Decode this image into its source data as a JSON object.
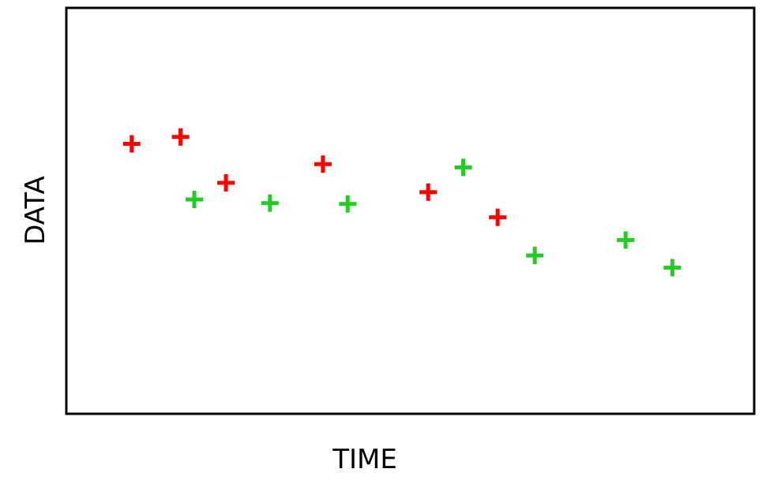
{
  "chart_data": {
    "type": "scatter",
    "title": "",
    "xlabel": "TIME",
    "ylabel": "DATA",
    "xlim": [
      0,
      100
    ],
    "ylim": [
      0,
      100
    ],
    "grid": false,
    "legend": "none",
    "series": [
      {
        "color": "#ff0000",
        "marker": "plus",
        "points": [
          {
            "x": 9.5,
            "y": 66.5
          },
          {
            "x": 16.6,
            "y": 68.2
          },
          {
            "x": 23.2,
            "y": 56.9
          },
          {
            "x": 37.3,
            "y": 61.5
          },
          {
            "x": 52.6,
            "y": 54.6
          },
          {
            "x": 62.7,
            "y": 48.4
          }
        ]
      },
      {
        "color": "#22cc22",
        "marker": "plus",
        "points": [
          {
            "x": 18.6,
            "y": 52.8
          },
          {
            "x": 29.6,
            "y": 51.9
          },
          {
            "x": 40.9,
            "y": 51.7
          },
          {
            "x": 57.7,
            "y": 60.7
          },
          {
            "x": 68.1,
            "y": 39.0
          },
          {
            "x": 81.3,
            "y": 42.8
          },
          {
            "x": 88.1,
            "y": 36.0
          }
        ]
      }
    ]
  }
}
